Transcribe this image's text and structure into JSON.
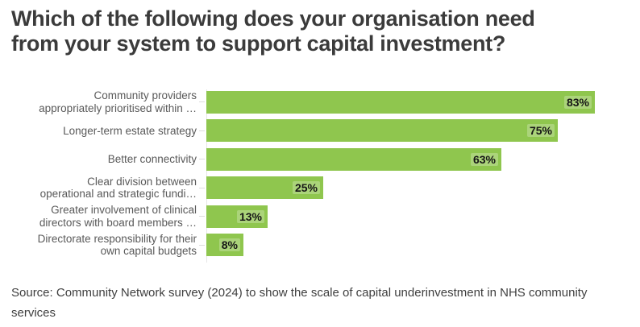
{
  "header": {
    "title_lines": [
      "Which of the following does your organisation need",
      "from your system to support capital investment?"
    ]
  },
  "chart_data": {
    "type": "bar",
    "orientation": "horizontal",
    "title": "Which of the following does your organisation need from your system to support capital investment?",
    "categories": [
      "Community providers appropriately prioritised within …",
      "Longer-term estate strategy",
      "Better connectivity",
      "Clear division between operational and strategic fundi…",
      "Greater involvement of clinical directors with board members …",
      "Directorate responsibility for their own capital budgets"
    ],
    "label_lines": [
      [
        "Community providers",
        "appropriately prioritised within …"
      ],
      [
        "Longer-term estate strategy"
      ],
      [
        "Better connectivity"
      ],
      [
        "Clear division between",
        "operational and strategic fundi…"
      ],
      [
        "Greater involvement of clinical",
        "directors with board members …"
      ],
      [
        "Directorate responsibility for their",
        "own capital budgets"
      ]
    ],
    "values": [
      83,
      75,
      63,
      25,
      13,
      8
    ],
    "value_labels": [
      "83%",
      "75%",
      "63%",
      "25%",
      "13%",
      "8%"
    ],
    "unit": "%",
    "xlim": [
      0,
      100
    ],
    "grid": false,
    "legend": "none",
    "bar_color": "#8FC64E",
    "value_label_color": "#161616",
    "category_label_color": "#595959"
  },
  "footer": {
    "source_lines": [
      "Source: Community Network survey (2024) to show the scale of capital underinvestment in NHS community",
      "services"
    ],
    "source_text": "Source: Community Network survey (2024) to show the scale of capital underinvestment in NHS community services"
  }
}
